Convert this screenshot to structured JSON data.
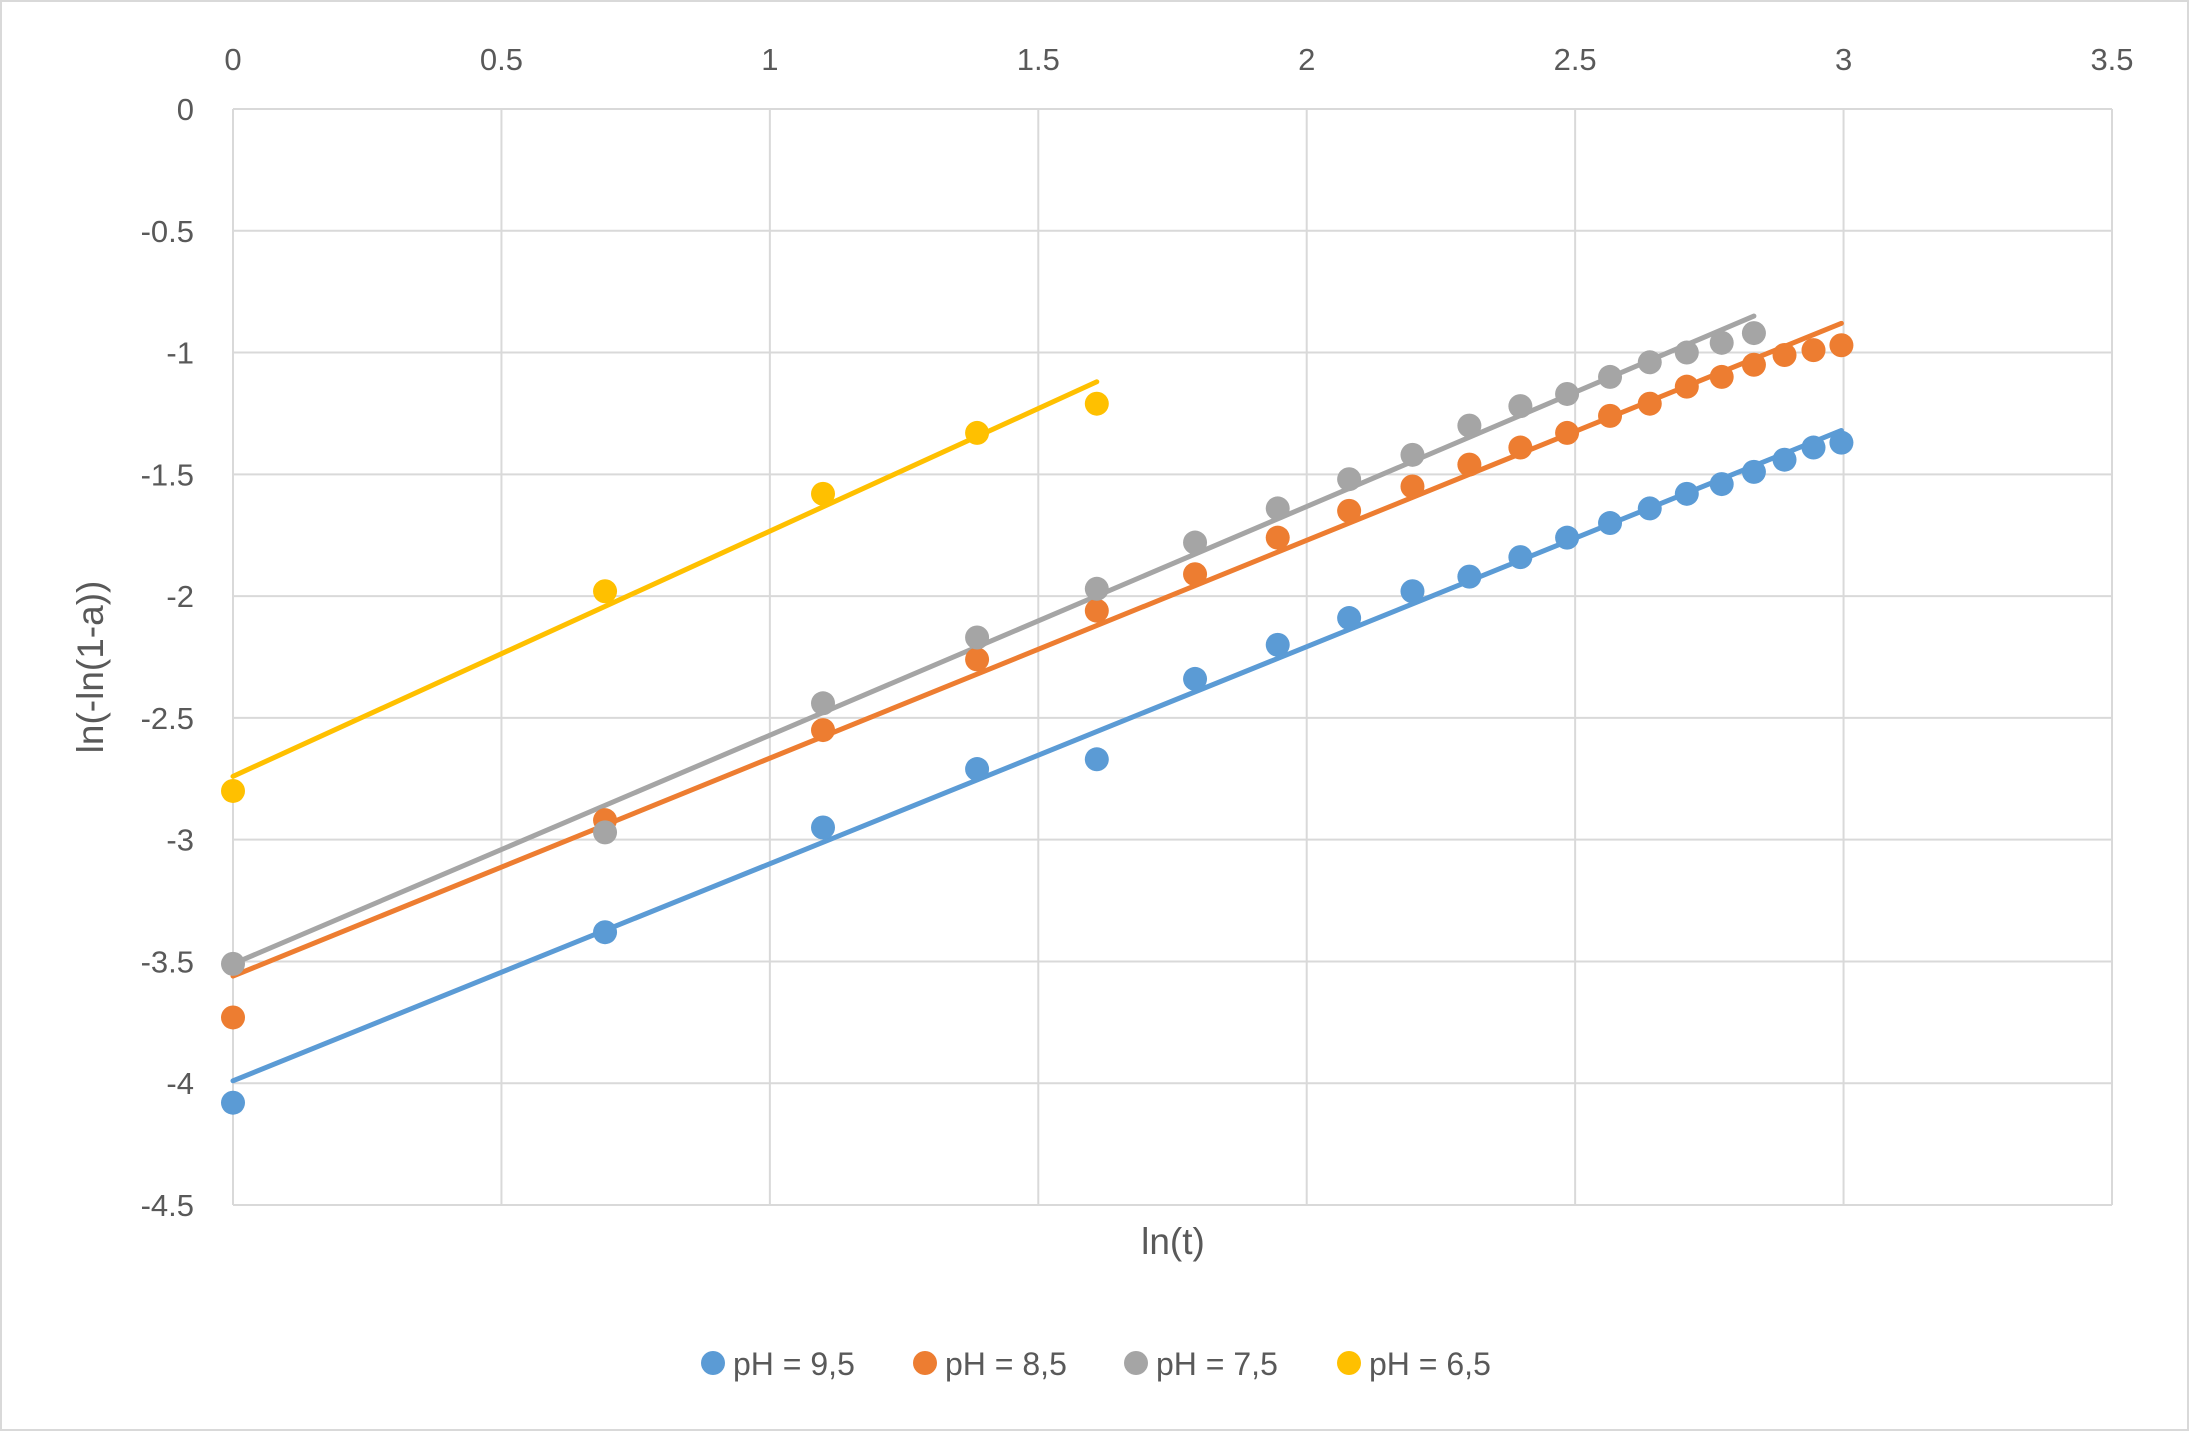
{
  "chart_data": {
    "type": "scatter",
    "title": "",
    "xlabel": "ln(t)",
    "ylabel": "ln(-ln(1-a))",
    "xlim": [
      0,
      3.5
    ],
    "ylim": [
      -4.5,
      0
    ],
    "x_axis_position": "top",
    "x_ticks": [
      0,
      0.5,
      1,
      1.5,
      2,
      2.5,
      3,
      3.5
    ],
    "x_tick_labels": [
      "0",
      "0.5",
      "1",
      "1.5",
      "2",
      "2.5",
      "3",
      "3.5"
    ],
    "y_ticks": [
      0,
      -0.5,
      -1,
      -1.5,
      -2,
      -2.5,
      -3,
      -3.5,
      -4,
      -4.5
    ],
    "y_tick_labels": [
      "0",
      "-0.5",
      "-1",
      "-1.5",
      "-2",
      "-2.5",
      "-3",
      "-3.5",
      "-4",
      "-4.5"
    ],
    "grid": true,
    "legend_position": "bottom",
    "trendlines": "linear",
    "series": [
      {
        "name": "pH = 9,5",
        "color": "#5b9bd5",
        "points": [
          [
            0,
            -4.08
          ],
          [
            0.693,
            -3.38
          ],
          [
            1.099,
            -2.95
          ],
          [
            1.386,
            -2.71
          ],
          [
            1.609,
            -2.67
          ],
          [
            1.792,
            -2.34
          ],
          [
            1.946,
            -2.2
          ],
          [
            2.079,
            -2.09
          ],
          [
            2.197,
            -1.98
          ],
          [
            2.303,
            -1.92
          ],
          [
            2.398,
            -1.84
          ],
          [
            2.485,
            -1.76
          ],
          [
            2.565,
            -1.7
          ],
          [
            2.639,
            -1.64
          ],
          [
            2.708,
            -1.58
          ],
          [
            2.773,
            -1.54
          ],
          [
            2.833,
            -1.49
          ],
          [
            2.89,
            -1.44
          ],
          [
            2.944,
            -1.39
          ],
          [
            2.996,
            -1.37
          ]
        ],
        "trend": {
          "x": [
            0,
            2.996
          ],
          "y": [
            -3.99,
            -1.32
          ]
        }
      },
      {
        "name": "pH = 8,5",
        "color": "#ed7d31",
        "points": [
          [
            0,
            -3.73
          ],
          [
            0.693,
            -2.92
          ],
          [
            1.099,
            -2.55
          ],
          [
            1.386,
            -2.26
          ],
          [
            1.609,
            -2.06
          ],
          [
            1.792,
            -1.91
          ],
          [
            1.946,
            -1.76
          ],
          [
            2.079,
            -1.65
          ],
          [
            2.197,
            -1.55
          ],
          [
            2.303,
            -1.46
          ],
          [
            2.398,
            -1.39
          ],
          [
            2.485,
            -1.33
          ],
          [
            2.565,
            -1.26
          ],
          [
            2.639,
            -1.21
          ],
          [
            2.708,
            -1.14
          ],
          [
            2.773,
            -1.1
          ],
          [
            2.833,
            -1.05
          ],
          [
            2.89,
            -1.01
          ],
          [
            2.944,
            -0.99
          ],
          [
            2.996,
            -0.97
          ]
        ],
        "trend": {
          "x": [
            0,
            2.996
          ],
          "y": [
            -3.56,
            -0.88
          ]
        }
      },
      {
        "name": "pH = 7,5",
        "color": "#a5a5a5",
        "points": [
          [
            0,
            -3.51
          ],
          [
            0.693,
            -2.97
          ],
          [
            1.099,
            -2.44
          ],
          [
            1.386,
            -2.17
          ],
          [
            1.609,
            -1.97
          ],
          [
            1.792,
            -1.78
          ],
          [
            1.946,
            -1.64
          ],
          [
            2.079,
            -1.52
          ],
          [
            2.197,
            -1.42
          ],
          [
            2.303,
            -1.3
          ],
          [
            2.398,
            -1.22
          ],
          [
            2.485,
            -1.17
          ],
          [
            2.565,
            -1.1
          ],
          [
            2.639,
            -1.04
          ],
          [
            2.708,
            -1.0
          ],
          [
            2.773,
            -0.96
          ],
          [
            2.833,
            -0.92
          ]
        ],
        "trend": {
          "x": [
            0,
            2.833
          ],
          "y": [
            -3.51,
            -0.85
          ]
        }
      },
      {
        "name": "pH = 6,5",
        "color": "#ffc000",
        "points": [
          [
            0,
            -2.8
          ],
          [
            0.693,
            -1.98
          ],
          [
            1.099,
            -1.58
          ],
          [
            1.386,
            -1.33
          ],
          [
            1.609,
            -1.21
          ]
        ],
        "trend": {
          "x": [
            0,
            1.609
          ],
          "y": [
            -2.74,
            -1.12
          ]
        }
      }
    ]
  }
}
